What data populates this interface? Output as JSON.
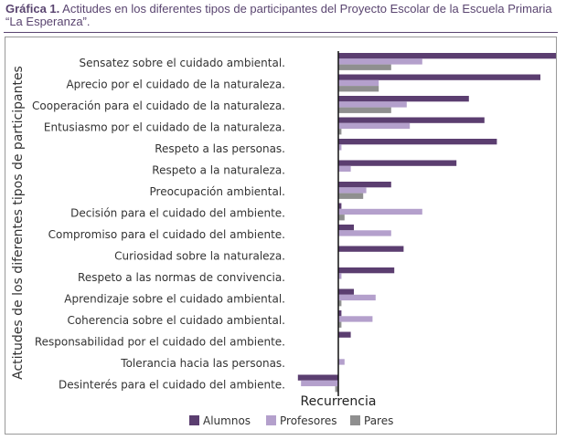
{
  "caption": {
    "label": "Gráfica 1.",
    "text": "Actitudes en los diferentes tipos de participantes del Proyecto Escolar de la Escuela Primaria “La Esperanza”."
  },
  "chart_data": {
    "type": "bar",
    "orientation": "horizontal",
    "title": "",
    "xlabel": "Recurrencia",
    "ylabel": "Actitudes de los diferentes tipos de participantes",
    "xlim": [
      -14,
      73
    ],
    "grid": false,
    "legend_position": "bottom",
    "categories": [
      "Sensatez sobre el cuidado ambiental.",
      "Aprecio por el cuidado de la naturaleza.",
      "Cooperación para el cuidado de la naturaleza.",
      "Entusiasmo por el cuidado de la naturaleza.",
      "Respeto a las personas.",
      "Respeto a la naturaleza.",
      "Preocupación ambiental.",
      "Decisión para el cuidado del ambiente.",
      "Compromiso para el cuidado del ambiente.",
      "Curiosidad sobre la naturaleza.",
      "Respeto a las normas de convivencia.",
      "Aprendizaje sobre el cuidado ambiental.",
      "Coherencia sobre el cuidado ambiental.",
      "Responsabilidad por el cuidado del ambiente.",
      "Tolerancia hacia las personas.",
      "Desinterés para el cuidado del ambiente."
    ],
    "series": [
      {
        "name": "Alumnos",
        "color": "#5b3e70",
        "values": [
          70,
          65,
          42,
          47,
          51,
          38,
          17,
          1,
          5,
          21,
          18,
          5,
          1,
          4,
          0,
          -13
        ]
      },
      {
        "name": "Profesores",
        "color": "#b4a0cc",
        "values": [
          27,
          13,
          22,
          23,
          1,
          4,
          9,
          27,
          17,
          0,
          1,
          12,
          11,
          0,
          2,
          -12
        ]
      },
      {
        "name": "Pares",
        "color": "#8f8f8f",
        "values": [
          17,
          13,
          17,
          1,
          0,
          0,
          8,
          2,
          0,
          0,
          0,
          1,
          1,
          0,
          0,
          -1
        ]
      }
    ]
  }
}
